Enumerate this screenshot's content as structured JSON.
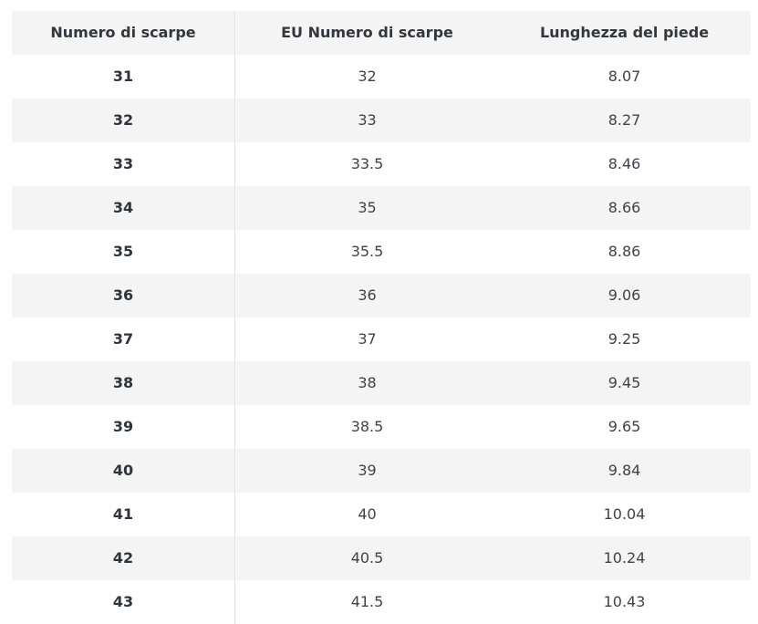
{
  "colors": {
    "stripe_bg": "#f4f4f4",
    "header_bg": "#f4f4f4",
    "header_text": "#32373d",
    "body_text": "#3e434a",
    "bold_text": "#2f343a",
    "divider": "#e2e2e2",
    "page_bg": "#ffffff"
  },
  "chart_data": {
    "type": "table",
    "title": "",
    "columns": [
      "Numero di scarpe",
      "EU Numero di scarpe",
      "Lunghezza del piede"
    ],
    "rows": [
      [
        "31",
        "32",
        "8.07"
      ],
      [
        "32",
        "33",
        "8.27"
      ],
      [
        "33",
        "33.5",
        "8.46"
      ],
      [
        "34",
        "35",
        "8.66"
      ],
      [
        "35",
        "35.5",
        "8.86"
      ],
      [
        "36",
        "36",
        "9.06"
      ],
      [
        "37",
        "37",
        "9.25"
      ],
      [
        "38",
        "38",
        "9.45"
      ],
      [
        "39",
        "38.5",
        "9.65"
      ],
      [
        "40",
        "39",
        "9.84"
      ],
      [
        "41",
        "40",
        "10.04"
      ],
      [
        "42",
        "40.5",
        "10.24"
      ],
      [
        "43",
        "41.5",
        "10.43"
      ]
    ],
    "layout": {
      "striped": "alternate rows light gray, header gray",
      "alignment": "center",
      "first_column_bold": true,
      "divider_after_first_column": true
    }
  }
}
